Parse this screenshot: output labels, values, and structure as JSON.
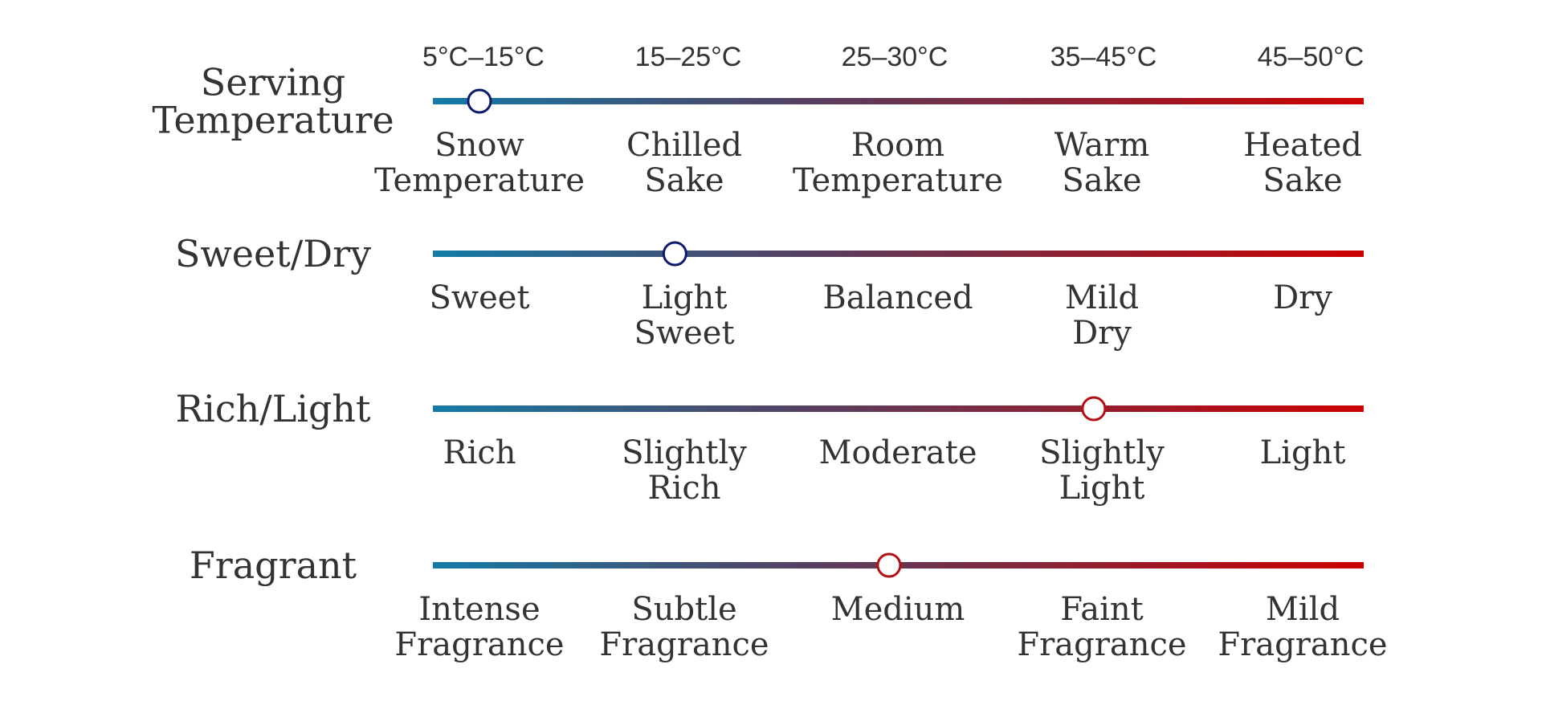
{
  "colors": {
    "scale_start": "#137ba6",
    "scale_mid": "#5a3d5e",
    "scale_end": "#cc0000",
    "marker_cool": "#0b1b6b",
    "marker_warm": "#b30f14",
    "text": "#333333"
  },
  "scales": [
    {
      "label": [
        "Serving",
        "Temperature"
      ],
      "top_labels": [
        "5°C–15°C",
        "15–25°C",
        "25–30°C",
        "35–45°C",
        "45–50°C"
      ],
      "categories": [
        [
          "Snow",
          "Temperature"
        ],
        [
          "Chilled",
          "Sake"
        ],
        [
          "Room",
          "Temperature"
        ],
        [
          "Warm",
          "Sake"
        ],
        [
          "Heated",
          "Sake"
        ]
      ],
      "marker_fraction": 0.05,
      "marker_color": "cool"
    },
    {
      "label": [
        "Sweet/Dry"
      ],
      "categories": [
        [
          "Sweet"
        ],
        [
          "Light",
          "Sweet"
        ],
        [
          "Balanced"
        ],
        [
          "Mild",
          "Dry"
        ],
        [
          "Dry"
        ]
      ],
      "marker_fraction": 0.26,
      "marker_color": "cool"
    },
    {
      "label": [
        "Rich/Light"
      ],
      "categories": [
        [
          "Rich"
        ],
        [
          "Slightly",
          "Rich"
        ],
        [
          "Moderate"
        ],
        [
          "Slightly",
          "Light"
        ],
        [
          "Light"
        ]
      ],
      "marker_fraction": 0.71,
      "marker_color": "warm"
    },
    {
      "label": [
        "Fragrant"
      ],
      "categories": [
        [
          "Intense",
          "Fragrance"
        ],
        [
          "Subtle",
          "Fragrance"
        ],
        [
          "Medium"
        ],
        [
          "Faint",
          "Fragrance"
        ],
        [
          "Mild",
          "Fragrance"
        ]
      ],
      "marker_fraction": 0.49,
      "marker_color": "warm"
    }
  ]
}
